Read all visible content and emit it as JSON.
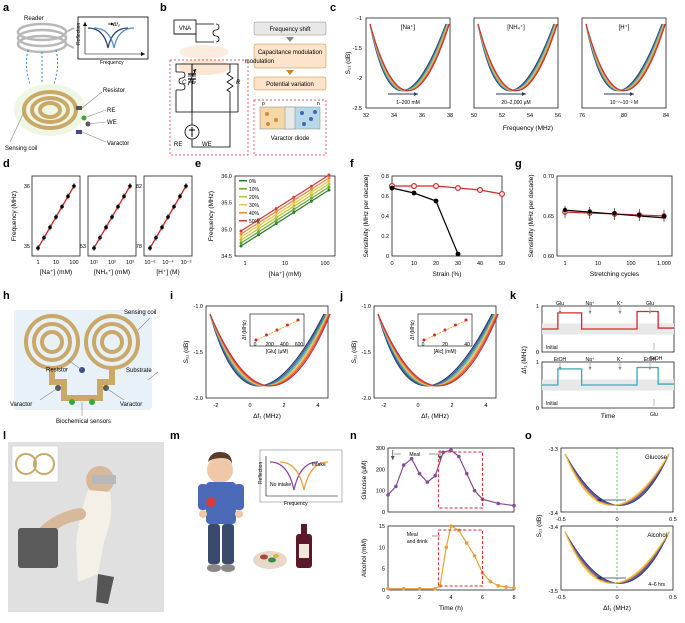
{
  "labels": {
    "a": "a",
    "b": "b",
    "c": "c",
    "d": "d",
    "e": "e",
    "f": "f",
    "g": "g",
    "h": "h",
    "i": "i",
    "j": "j",
    "k": "k",
    "l": "l",
    "m": "m",
    "n": "n",
    "o": "o"
  },
  "a": {
    "reader": "Reader",
    "reflection": "Reflection",
    "frequency": "Frequency",
    "deltaf": "Δf₀",
    "resistor": "Resistor",
    "re": "RE",
    "we": "WE",
    "sensing_coil": "Sensing coil",
    "varactor": "Varactor",
    "coil_color": "#c9a868",
    "reader_color": "#b8b8b8"
  },
  "b": {
    "vna": "VNA",
    "freq_shift": "Frequency shift",
    "cap_mod": "Capacitance modulation",
    "pot_var": "Potential variation",
    "L": "L",
    "C": "C",
    "R": "R",
    "re": "RE",
    "we": "WE",
    "varactor_diode": "Varactor diode",
    "p": "p",
    "n": "n",
    "box_fill": "#fce3c9",
    "box_stroke": "#c48934",
    "boxgray_fill": "#e8e8e8",
    "boxgray_stroke": "#888888"
  },
  "c": {
    "panels": [
      "[Na⁺]",
      "[NH₄⁺]",
      "[H⁺]"
    ],
    "arrows": [
      "1–200 mM",
      "20–2,000 μM",
      "10⁻⁷–10⁻² M"
    ],
    "ylabel": "S₁₁ (dB)",
    "xlabel": "Frequency (MHz)",
    "ylim": [
      -2.5,
      -1.0
    ],
    "yticks": [
      -1.0,
      -1.5,
      -2.0,
      -2.5
    ],
    "xticks": [
      [
        32,
        34,
        36,
        38
      ],
      [
        50,
        52,
        54,
        56
      ],
      [
        76,
        80,
        84
      ]
    ],
    "colors": [
      "#2a3a6b",
      "#3d5a8c",
      "#4a8aa3",
      "#56b8b8",
      "#7fc97f",
      "#f7ca3a",
      "#f08a3a",
      "#e04545",
      "#c23838"
    ],
    "curves_per_panel": 9,
    "parabola_width": 12
  },
  "d": {
    "ylabel": "Frequency (MHz)",
    "xlabels": [
      "[Na⁺] (mM)",
      "[NH₄⁺] (mM)",
      "[H⁺] (M)"
    ],
    "xticks": [
      [
        "1",
        "10",
        "100"
      ],
      [
        "10¹",
        "10²",
        "10³"
      ],
      [
        "10⁻⁶",
        "10⁻⁴",
        "10⁻²"
      ]
    ],
    "yticks": [
      [
        "35",
        "36"
      ],
      [
        "53"
      ],
      [
        "78",
        "82"
      ]
    ],
    "line_color": "#d62828"
  },
  "e": {
    "ylabel": "Frequency (MHz)",
    "xlabel": "[Na⁺] (mM)",
    "xticks": [
      "1",
      "10",
      "100"
    ],
    "yticks": [
      "34.5",
      "35.0",
      "35.5",
      "36.0"
    ],
    "legend": [
      "0%",
      "10%",
      "20%",
      "30%",
      "40%",
      "50%"
    ],
    "legend_colors": [
      "#2a7a2a",
      "#6aa834",
      "#b8c23a",
      "#f0c43a",
      "#e8893a",
      "#d63a3a"
    ]
  },
  "f": {
    "ylabel": "Sensitivity (MHz per decade)",
    "xlabel": "Strain (%)",
    "xticks": [
      "0",
      "10",
      "20",
      "30",
      "40",
      "50"
    ],
    "yticks": [
      "0",
      "0.2",
      "0.4",
      "0.6",
      "0.8"
    ],
    "red": "#d62828",
    "black": "#000000",
    "red_vals": [
      0.7,
      0.7,
      0.7,
      0.68,
      0.66,
      0.62
    ],
    "black_vals": [
      0.68,
      0.63,
      0.55,
      0.02,
      null,
      null
    ]
  },
  "g": {
    "ylabel": "Sensitivity (MHz per decade)",
    "xlabel": "Stretching cycles",
    "xticks": [
      "1",
      "10",
      "100",
      "1,000"
    ],
    "yticks": [
      "0.60",
      "0.65",
      "0.70"
    ],
    "red": "#d62828",
    "black": "#000000"
  },
  "h": {
    "sensing_coil": "Sensing coil",
    "resistor": "Resistor",
    "substrate": "Substrate",
    "varactor": "Varactor",
    "biochem": "Biochemical sensors",
    "coil_color": "#c9a868"
  },
  "i": {
    "ylabel": "S₁₁ (dB)",
    "xlabel": "Δf₁ (MHz)",
    "xticks": [
      "-2",
      "0",
      "2",
      "4"
    ],
    "yticks": [
      "-1.0",
      "-1.5",
      "-2.0"
    ],
    "inset_xlabel": "[Glu] (μM)",
    "inset_ylabel": "Δf (MHz)",
    "inset_xticks": [
      "0",
      "200",
      "400",
      "600"
    ],
    "colors": [
      "#2a3a6b",
      "#3d5a8c",
      "#4a8aa3",
      "#56b8b8",
      "#f7ca3a",
      "#f08a3a",
      "#e04545",
      "#c23838"
    ]
  },
  "j": {
    "ylabel": "S₁₁ (dB)",
    "xlabel": "Δf₁ (MHz)",
    "xticks": [
      "-2",
      "0",
      "2",
      "4"
    ],
    "yticks": [
      "-1.0",
      "-1.5",
      "-2.0"
    ],
    "inset_xlabel": "[Alc] (mM)",
    "inset_ylabel": "Δf (MHz)",
    "inset_xticks": [
      "0",
      "20",
      "40"
    ],
    "colors": [
      "#2a3a6b",
      "#3d5a8c",
      "#4a8aa3",
      "#56b8b8",
      "#f7ca3a",
      "#f08a3a",
      "#e04545",
      "#c23838"
    ]
  },
  "k": {
    "xlabel": "Time",
    "ylabel": "Δf₁ (MHz)",
    "yticks1": [
      "0",
      "1"
    ],
    "yticks2": [
      "0",
      "1"
    ],
    "events_top": [
      "Glu",
      "Na⁺",
      "K⁺",
      "Glu"
    ],
    "initial": "Initial",
    "etoh": "EtOH",
    "events_bot": [
      "EtOH",
      "Na⁺",
      "K⁺",
      "EtOH"
    ],
    "glu_bot": "Glu",
    "red": "#d62828",
    "cyan": "#3aa8b8",
    "band": "#e8e8e8"
  },
  "l": {},
  "m": {
    "reflection": "Reflection",
    "frequency": "Frequency",
    "intake": "Intake",
    "no_intake": "No intake",
    "intake_color": "#e8a03a",
    "no_intake_color": "#8a4a9a"
  },
  "n": {
    "ylabel1": "Glucose (μM)",
    "ylabel2": "Alcohol (mM)",
    "xlabel": "Time (h)",
    "xticks": [
      "0",
      "2",
      "4",
      "6",
      "8"
    ],
    "y1ticks": [
      "0",
      "100",
      "200",
      "300"
    ],
    "y2ticks": [
      "0",
      "5",
      "10",
      "15"
    ],
    "meal": "Meal",
    "meal_drink": "Meal\nand drink",
    "purple": "#8a4a9a",
    "orange": "#e8a03a",
    "red_box": "#d62828",
    "glu_pts": [
      [
        0,
        80
      ],
      [
        0.5,
        120
      ],
      [
        1,
        220
      ],
      [
        1.5,
        250
      ],
      [
        2,
        180
      ],
      [
        2.5,
        140
      ],
      [
        3,
        170
      ],
      [
        3.5,
        280
      ],
      [
        4,
        290
      ],
      [
        4.5,
        260
      ],
      [
        5,
        180
      ],
      [
        5.5,
        100
      ],
      [
        6,
        60
      ],
      [
        7,
        40
      ],
      [
        8,
        30
      ]
    ],
    "alc_pts": [
      [
        0,
        0.3
      ],
      [
        1,
        0.3
      ],
      [
        2,
        0.3
      ],
      [
        3,
        0.3
      ],
      [
        3.3,
        1
      ],
      [
        3.7,
        10
      ],
      [
        4,
        15
      ],
      [
        4.5,
        14
      ],
      [
        5,
        11
      ],
      [
        5.5,
        8
      ],
      [
        6,
        4
      ],
      [
        6.5,
        2
      ],
      [
        7,
        1
      ],
      [
        7.5,
        0.7
      ],
      [
        8,
        0.5
      ]
    ]
  },
  "o": {
    "ylabel": "S₁₁ (dB)",
    "xlabel": "Δf₁ (MHz)",
    "xticks": [
      "-0.5",
      "0",
      "0.5"
    ],
    "yticks1": [
      "-3.3",
      "-3.4"
    ],
    "yticks2": [
      "-3.4",
      "-3.5"
    ],
    "title1": "Glucose",
    "title2": "Alcohol",
    "arrow_label": "4–6 hrs",
    "colors": [
      "#2a3a6b",
      "#4a5aa3",
      "#8a4a9a",
      "#e8a03a",
      "#f0c43a"
    ]
  }
}
